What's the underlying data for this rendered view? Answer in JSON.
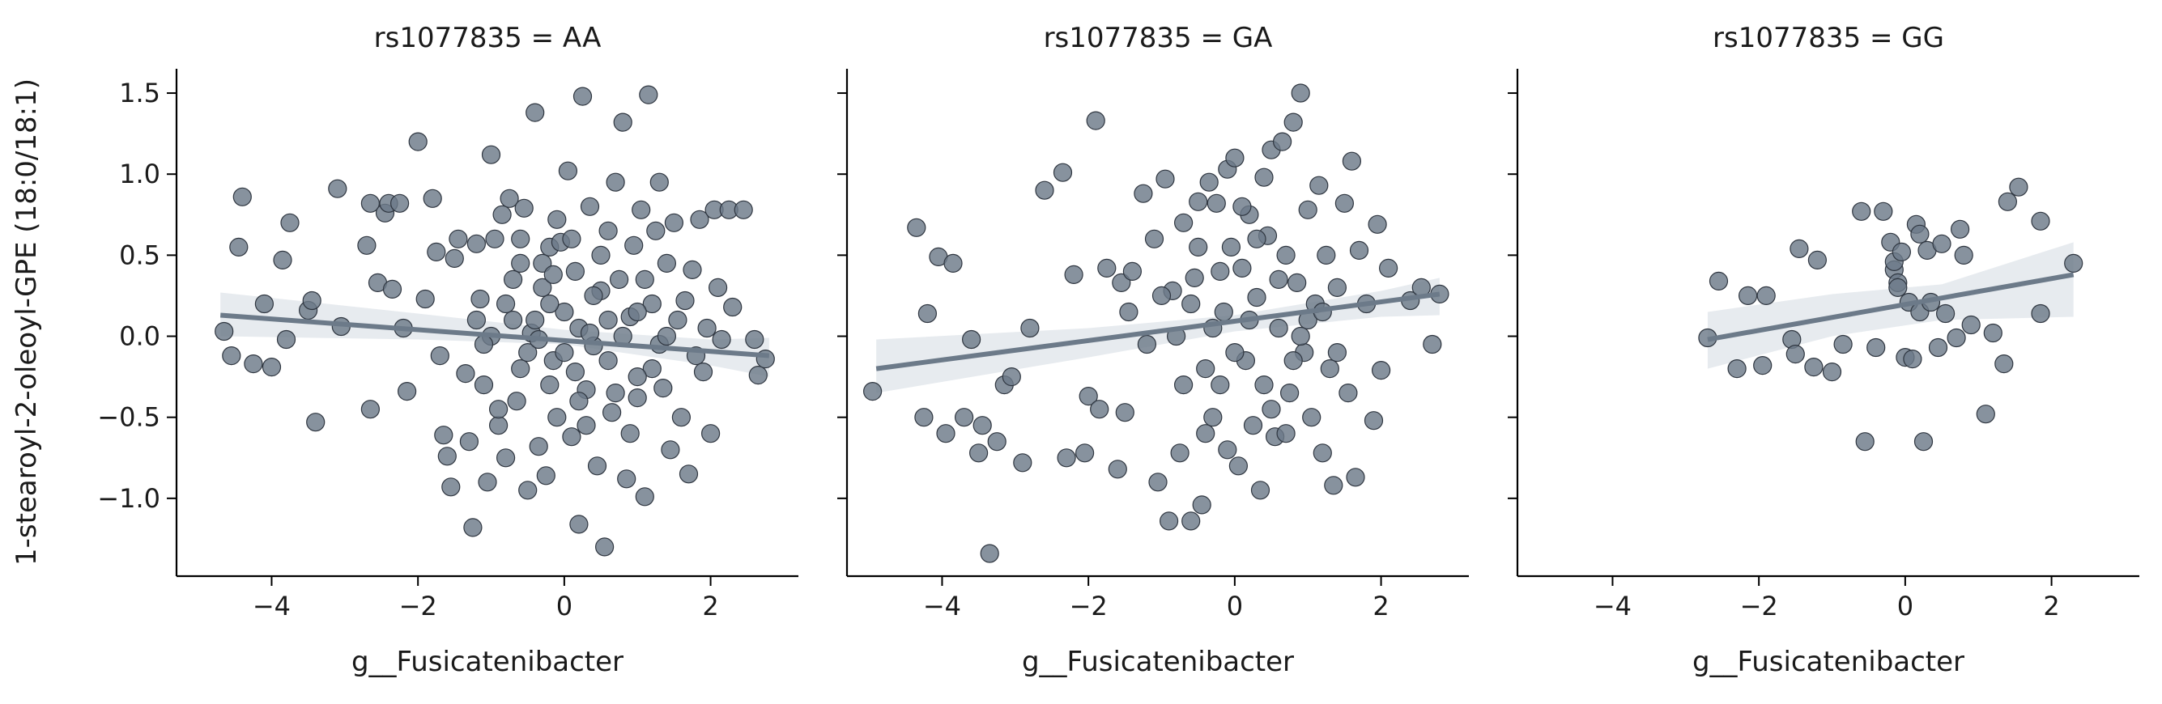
{
  "figure": {
    "ylabel": "1-stearoyl-2-oleoyl-GPE (18:0/18:1)"
  },
  "style": {
    "point_color": "#6c7a89",
    "point_edge": "#2f3640",
    "line_color": "#6c7a89",
    "band_color": "#dfe4ea"
  },
  "chart_data": [
    {
      "type": "scatter",
      "title": "rs1077835 = AA",
      "xlabel": "g__Fusicatenibacter",
      "ylabel": "1-stearoyl-2-oleoyl-GPE (18:0/18:1)",
      "xlim": [
        -5.3,
        3.2
      ],
      "ylim": [
        -1.48,
        1.65
      ],
      "xticks": [
        -4,
        -2,
        0,
        2
      ],
      "yticks": [
        -1.0,
        -0.5,
        0.0,
        0.5,
        1.0,
        1.5
      ],
      "ytick_labels": [
        "−1.0",
        "−0.5",
        "0.0",
        "0.5",
        "1.0",
        "1.5"
      ],
      "xtick_labels": [
        "−4",
        "−2",
        "0",
        "2"
      ],
      "regression": {
        "x": [
          -4.7,
          2.8
        ],
        "y": [
          0.13,
          -0.12
        ]
      },
      "ci_band": {
        "x": [
          -4.7,
          -2.0,
          0.0,
          2.0,
          2.8
        ],
        "lower": [
          0.0,
          -0.02,
          -0.05,
          -0.18,
          -0.25
        ],
        "upper": [
          0.27,
          0.14,
          0.04,
          -0.02,
          -0.01
        ]
      },
      "points": [
        [
          -4.65,
          0.03
        ],
        [
          -4.55,
          -0.12
        ],
        [
          -4.45,
          0.55
        ],
        [
          -4.4,
          0.86
        ],
        [
          -4.25,
          -0.17
        ],
        [
          -4.1,
          0.2
        ],
        [
          -4.0,
          -0.19
        ],
        [
          -3.85,
          0.47
        ],
        [
          -3.8,
          -0.02
        ],
        [
          -3.75,
          0.7
        ],
        [
          -3.5,
          0.16
        ],
        [
          -3.45,
          0.22
        ],
        [
          -3.4,
          -0.53
        ],
        [
          -3.1,
          0.91
        ],
        [
          -3.05,
          0.06
        ],
        [
          -2.7,
          0.56
        ],
        [
          -2.65,
          0.82
        ],
        [
          -2.65,
          -0.45
        ],
        [
          -2.55,
          0.33
        ],
        [
          -2.45,
          0.76
        ],
        [
          -2.4,
          0.82
        ],
        [
          -2.35,
          0.29
        ],
        [
          -2.25,
          0.82
        ],
        [
          -2.2,
          0.05
        ],
        [
          -2.15,
          -0.34
        ],
        [
          -2.0,
          1.2
        ],
        [
          -1.9,
          0.23
        ],
        [
          -1.8,
          0.85
        ],
        [
          -1.75,
          0.52
        ],
        [
          -1.7,
          -0.12
        ],
        [
          -1.65,
          -0.61
        ],
        [
          -1.6,
          -0.74
        ],
        [
          -1.55,
          -0.93
        ],
        [
          -1.5,
          0.48
        ],
        [
          -1.45,
          0.6
        ],
        [
          -1.35,
          -0.23
        ],
        [
          -1.3,
          -0.65
        ],
        [
          -1.25,
          -1.18
        ],
        [
          -1.2,
          0.57
        ],
        [
          -1.15,
          0.23
        ],
        [
          -1.1,
          -0.3
        ],
        [
          -1.05,
          -0.9
        ],
        [
          -1.0,
          1.12
        ],
        [
          -0.95,
          0.6
        ],
        [
          -0.9,
          -0.55
        ],
        [
          -0.85,
          0.75
        ],
        [
          -0.8,
          -0.75
        ],
        [
          -0.75,
          0.85
        ],
        [
          -0.7,
          0.1
        ],
        [
          -0.65,
          -0.4
        ],
        [
          -0.6,
          0.45
        ],
        [
          -0.55,
          0.79
        ],
        [
          -0.5,
          -0.95
        ],
        [
          -0.45,
          0.02
        ],
        [
          -0.4,
          1.38
        ],
        [
          -0.35,
          -0.68
        ],
        [
          -0.3,
          0.3
        ],
        [
          -0.25,
          -0.86
        ],
        [
          -0.2,
          0.55
        ],
        [
          -0.15,
          -0.15
        ],
        [
          -0.1,
          0.72
        ],
        [
          -0.05,
          0.58
        ],
        [
          0.0,
          0.15
        ],
        [
          0.05,
          1.02
        ],
        [
          0.1,
          -0.62
        ],
        [
          0.15,
          0.4
        ],
        [
          0.2,
          -1.16
        ],
        [
          0.25,
          1.48
        ],
        [
          0.3,
          -0.33
        ],
        [
          0.35,
          0.8
        ],
        [
          0.4,
          -0.06
        ],
        [
          0.45,
          -0.8
        ],
        [
          0.5,
          0.28
        ],
        [
          0.55,
          -1.3
        ],
        [
          0.6,
          0.65
        ],
        [
          0.65,
          -0.47
        ],
        [
          0.7,
          0.95
        ],
        [
          0.75,
          0.35
        ],
        [
          0.8,
          1.32
        ],
        [
          0.85,
          -0.88
        ],
        [
          0.9,
          0.12
        ],
        [
          0.95,
          0.56
        ],
        [
          1.0,
          -0.38
        ],
        [
          1.05,
          0.78
        ],
        [
          1.1,
          -0.99
        ],
        [
          1.15,
          1.49
        ],
        [
          1.2,
          0.2
        ],
        [
          1.25,
          0.65
        ],
        [
          1.3,
          0.95
        ],
        [
          1.35,
          -0.32
        ],
        [
          1.4,
          0.45
        ],
        [
          1.45,
          -0.7
        ],
        [
          1.5,
          0.7
        ],
        [
          1.55,
          0.1
        ],
        [
          1.6,
          -0.5
        ],
        [
          1.65,
          0.22
        ],
        [
          1.7,
          -0.85
        ],
        [
          1.75,
          0.41
        ],
        [
          1.8,
          -0.12
        ],
        [
          1.85,
          0.72
        ],
        [
          1.9,
          -0.22
        ],
        [
          1.95,
          0.05
        ],
        [
          2.0,
          -0.6
        ],
        [
          2.05,
          0.78
        ],
        [
          2.1,
          0.3
        ],
        [
          2.15,
          -0.02
        ],
        [
          2.25,
          0.78
        ],
        [
          2.3,
          0.18
        ],
        [
          2.45,
          0.78
        ],
        [
          2.6,
          -0.02
        ],
        [
          2.65,
          -0.24
        ],
        [
          2.75,
          -0.14
        ],
        [
          -1.0,
          0.0
        ],
        [
          -0.8,
          0.2
        ],
        [
          -0.6,
          -0.2
        ],
        [
          -0.4,
          0.1
        ],
        [
          -0.2,
          -0.3
        ],
        [
          0.0,
          -0.1
        ],
        [
          0.2,
          0.05
        ],
        [
          0.4,
          0.25
        ],
        [
          0.6,
          -0.15
        ],
        [
          0.8,
          0.0
        ],
        [
          1.0,
          0.15
        ],
        [
          1.2,
          -0.2
        ],
        [
          -0.9,
          -0.45
        ],
        [
          -0.7,
          0.35
        ],
        [
          -0.5,
          -0.1
        ],
        [
          -0.3,
          0.45
        ],
        [
          -0.1,
          -0.5
        ],
        [
          0.1,
          0.6
        ],
        [
          0.3,
          -0.55
        ],
        [
          0.5,
          0.5
        ],
        [
          0.7,
          -0.35
        ],
        [
          0.9,
          -0.6
        ],
        [
          1.1,
          0.35
        ],
        [
          1.3,
          -0.05
        ],
        [
          -1.2,
          0.1
        ],
        [
          -1.1,
          -0.05
        ],
        [
          -0.6,
          0.6
        ],
        [
          -0.2,
          0.2
        ],
        [
          0.2,
          -0.4
        ],
        [
          0.6,
          0.1
        ],
        [
          1.0,
          -0.25
        ],
        [
          1.4,
          0.0
        ],
        [
          -0.35,
          -0.02
        ],
        [
          0.35,
          0.02
        ],
        [
          0.15,
          -0.22
        ],
        [
          -0.15,
          0.38
        ]
      ]
    },
    {
      "type": "scatter",
      "title": "rs1077835 = GA",
      "xlabel": "g__Fusicatenibacter",
      "xlim": [
        -5.3,
        3.2
      ],
      "ylim": [
        -1.48,
        1.65
      ],
      "xticks": [
        -4,
        -2,
        0,
        2
      ],
      "xtick_labels": [
        "−4",
        "−2",
        "0",
        "2"
      ],
      "regression": {
        "x": [
          -4.9,
          2.8
        ],
        "y": [
          -0.2,
          0.26
        ]
      },
      "ci_band": {
        "x": [
          -4.9,
          -2.0,
          0.0,
          2.0,
          2.8
        ],
        "lower": [
          -0.35,
          -0.13,
          0.03,
          0.12,
          0.13
        ],
        "upper": [
          -0.02,
          0.05,
          0.13,
          0.28,
          0.36
        ]
      },
      "points": [
        [
          -4.95,
          -0.34
        ],
        [
          -4.35,
          0.67
        ],
        [
          -4.25,
          -0.5
        ],
        [
          -4.2,
          0.14
        ],
        [
          -4.05,
          0.49
        ],
        [
          -3.95,
          -0.6
        ],
        [
          -3.85,
          0.45
        ],
        [
          -3.7,
          -0.5
        ],
        [
          -3.6,
          -0.02
        ],
        [
          -3.5,
          -0.72
        ],
        [
          -3.45,
          -0.55
        ],
        [
          -3.35,
          -1.34
        ],
        [
          -3.25,
          -0.65
        ],
        [
          -3.15,
          -0.3
        ],
        [
          -3.05,
          -0.25
        ],
        [
          -2.9,
          -0.78
        ],
        [
          -2.8,
          0.05
        ],
        [
          -2.6,
          0.9
        ],
        [
          -2.35,
          1.01
        ],
        [
          -2.3,
          -0.75
        ],
        [
          -2.2,
          0.38
        ],
        [
          -2.05,
          -0.72
        ],
        [
          -2.0,
          -0.37
        ],
        [
          -1.9,
          1.33
        ],
        [
          -1.85,
          -0.45
        ],
        [
          -1.75,
          0.42
        ],
        [
          -1.6,
          -0.82
        ],
        [
          -1.55,
          0.33
        ],
        [
          -1.5,
          -0.47
        ],
        [
          -1.45,
          0.15
        ],
        [
          -1.4,
          0.4
        ],
        [
          -1.25,
          0.88
        ],
        [
          -1.2,
          -0.05
        ],
        [
          -1.1,
          0.6
        ],
        [
          -1.05,
          -0.9
        ],
        [
          -0.95,
          0.97
        ],
        [
          -0.9,
          -1.14
        ],
        [
          -0.85,
          0.28
        ],
        [
          -0.75,
          -0.72
        ],
        [
          -0.7,
          0.7
        ],
        [
          -0.6,
          -1.14
        ],
        [
          -0.55,
          0.36
        ],
        [
          -0.5,
          0.83
        ],
        [
          -0.45,
          -1.04
        ],
        [
          -0.4,
          -0.6
        ],
        [
          -0.35,
          0.95
        ],
        [
          -0.3,
          0.05
        ],
        [
          -0.25,
          0.82
        ],
        [
          -0.2,
          -0.3
        ],
        [
          -0.15,
          0.15
        ],
        [
          -0.1,
          1.03
        ],
        [
          -0.05,
          0.55
        ],
        [
          0.0,
          1.1
        ],
        [
          0.05,
          -0.8
        ],
        [
          0.1,
          0.42
        ],
        [
          0.15,
          -0.15
        ],
        [
          0.2,
          0.75
        ],
        [
          0.25,
          -0.55
        ],
        [
          0.3,
          0.24
        ],
        [
          0.35,
          -0.95
        ],
        [
          0.4,
          0.98
        ],
        [
          0.45,
          0.62
        ],
        [
          0.5,
          1.15
        ],
        [
          0.55,
          -0.62
        ],
        [
          0.6,
          0.05
        ],
        [
          0.65,
          1.2
        ],
        [
          0.7,
          0.5
        ],
        [
          0.75,
          -0.35
        ],
        [
          0.8,
          1.32
        ],
        [
          0.85,
          0.33
        ],
        [
          0.9,
          1.5
        ],
        [
          0.95,
          -0.1
        ],
        [
          1.0,
          0.78
        ],
        [
          1.05,
          -0.5
        ],
        [
          1.1,
          0.2
        ],
        [
          1.15,
          0.93
        ],
        [
          1.2,
          -0.72
        ],
        [
          1.25,
          0.5
        ],
        [
          1.3,
          -0.2
        ],
        [
          1.35,
          -0.92
        ],
        [
          1.4,
          0.3
        ],
        [
          1.5,
          0.82
        ],
        [
          1.55,
          -0.35
        ],
        [
          1.6,
          1.08
        ],
        [
          1.65,
          -0.87
        ],
        [
          1.7,
          0.53
        ],
        [
          1.8,
          0.2
        ],
        [
          1.9,
          -0.52
        ],
        [
          1.95,
          0.69
        ],
        [
          2.0,
          -0.21
        ],
        [
          2.1,
          0.42
        ],
        [
          2.4,
          0.22
        ],
        [
          2.55,
          0.3
        ],
        [
          2.7,
          -0.05
        ],
        [
          2.8,
          0.26
        ],
        [
          -0.8,
          0.0
        ],
        [
          -0.6,
          0.2
        ],
        [
          -0.4,
          -0.2
        ],
        [
          -0.2,
          0.4
        ],
        [
          0.0,
          -0.1
        ],
        [
          0.2,
          0.1
        ],
        [
          0.4,
          -0.3
        ],
        [
          0.6,
          0.35
        ],
        [
          0.8,
          -0.15
        ],
        [
          1.0,
          0.1
        ],
        [
          -0.5,
          0.55
        ],
        [
          0.5,
          -0.45
        ],
        [
          -0.3,
          -0.5
        ],
        [
          0.3,
          0.6
        ],
        [
          0.7,
          -0.6
        ],
        [
          -0.7,
          -0.3
        ],
        [
          0.1,
          0.8
        ],
        [
          -0.1,
          -0.7
        ],
        [
          0.9,
          0.0
        ],
        [
          1.2,
          0.15
        ],
        [
          -1.0,
          0.25
        ],
        [
          1.4,
          -0.1
        ]
      ]
    },
    {
      "type": "scatter",
      "title": "rs1077835 = GG",
      "xlabel": "g__Fusicatenibacter",
      "xlim": [
        -5.3,
        3.2
      ],
      "ylim": [
        -1.48,
        1.65
      ],
      "xticks": [
        -4,
        -2,
        0,
        2
      ],
      "xtick_labels": [
        "−4",
        "−2",
        "0",
        "2"
      ],
      "regression": {
        "x": [
          -2.7,
          2.3
        ],
        "y": [
          -0.02,
          0.38
        ]
      },
      "ci_band": {
        "x": [
          -2.7,
          -1.0,
          0.5,
          2.3
        ],
        "lower": [
          -0.2,
          0.0,
          0.1,
          0.12
        ],
        "upper": [
          0.15,
          0.26,
          0.32,
          0.58
        ]
      },
      "points": [
        [
          -2.7,
          -0.01
        ],
        [
          -2.55,
          0.34
        ],
        [
          -2.3,
          -0.2
        ],
        [
          -2.15,
          0.25
        ],
        [
          -1.95,
          -0.18
        ],
        [
          -1.9,
          0.25
        ],
        [
          -1.55,
          -0.02
        ],
        [
          -1.5,
          -0.11
        ],
        [
          -1.45,
          0.54
        ],
        [
          -1.25,
          -0.19
        ],
        [
          -1.2,
          0.47
        ],
        [
          -1.0,
          -0.22
        ],
        [
          -0.85,
          -0.05
        ],
        [
          -0.6,
          0.77
        ],
        [
          -0.55,
          -0.65
        ],
        [
          -0.4,
          -0.07
        ],
        [
          -0.3,
          0.77
        ],
        [
          -0.2,
          0.58
        ],
        [
          -0.15,
          0.41
        ],
        [
          -0.15,
          0.46
        ],
        [
          -0.1,
          0.33
        ],
        [
          -0.05,
          0.52
        ],
        [
          0.0,
          -0.13
        ],
        [
          0.05,
          0.21
        ],
        [
          0.1,
          -0.14
        ],
        [
          0.15,
          0.69
        ],
        [
          0.2,
          0.63
        ],
        [
          0.2,
          0.15
        ],
        [
          0.25,
          -0.65
        ],
        [
          0.3,
          0.53
        ],
        [
          0.35,
          0.21
        ],
        [
          0.45,
          -0.07
        ],
        [
          0.5,
          0.57
        ],
        [
          0.55,
          0.14
        ],
        [
          0.7,
          -0.01
        ],
        [
          0.75,
          0.66
        ],
        [
          0.8,
          0.5
        ],
        [
          0.9,
          0.07
        ],
        [
          1.1,
          -0.48
        ],
        [
          1.2,
          0.02
        ],
        [
          1.35,
          -0.17
        ],
        [
          1.4,
          0.83
        ],
        [
          1.55,
          0.92
        ],
        [
          1.85,
          0.71
        ],
        [
          1.85,
          0.14
        ],
        [
          2.3,
          0.45
        ],
        [
          -0.1,
          0.3
        ]
      ]
    }
  ]
}
